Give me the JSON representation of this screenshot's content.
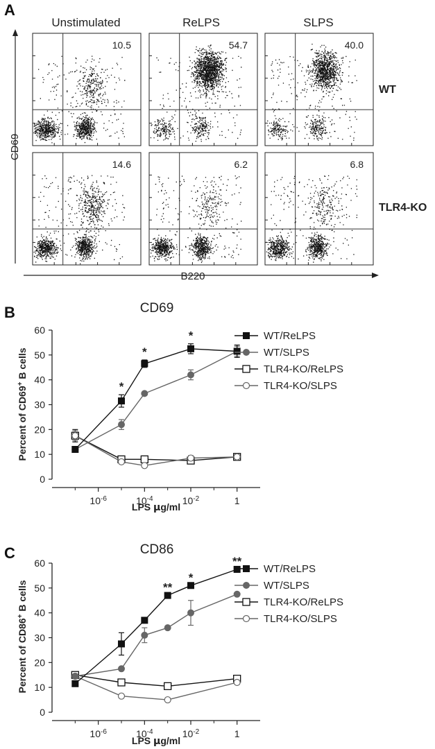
{
  "chart_data": [
    {
      "panel": "A",
      "type": "scatter",
      "columns": [
        "Unstimulated",
        "ReLPS",
        "SLPS"
      ],
      "rows": [
        "WT",
        "TLR4-KO"
      ],
      "percentages": [
        [
          "10.5",
          "54.7",
          "40.0"
        ],
        [
          "14.6",
          "6.2",
          "6.8"
        ]
      ],
      "xlabel": "B220",
      "ylabel": "CD69"
    },
    {
      "panel": "B",
      "type": "line",
      "title": "CD69",
      "xlabel": "LPS μg/ml",
      "ylabel": "Percent of CD69⁺ B cells",
      "xscale": "log",
      "xlim": [
        1e-08,
        10
      ],
      "ylim": [
        0,
        60
      ],
      "yticks": [
        0,
        10,
        20,
        30,
        40,
        50,
        60
      ],
      "xticks": [
        "10⁻⁶",
        "10⁻⁴",
        "10⁻²",
        "1"
      ],
      "x": [
        1e-07,
        1e-05,
        0.0001,
        0.01,
        1
      ],
      "series": [
        {
          "name": "WT/ReLPS",
          "values": [
            12,
            31.5,
            46.5,
            52.5,
            51.5
          ],
          "errors": [
            0,
            2.5,
            1.5,
            2,
            2.5
          ],
          "marker": "filled-square",
          "color": "#111111"
        },
        {
          "name": "WT/SLPS",
          "values": [
            12,
            22,
            34.5,
            42,
            51.5
          ],
          "errors": [
            0,
            2,
            0,
            2,
            2
          ],
          "marker": "filled-circle",
          "color": "#666666"
        },
        {
          "name": "TLR4-KO/ReLPS",
          "values": [
            17.5,
            8,
            8,
            7.5,
            9
          ],
          "errors": [
            2.5,
            0.5,
            1,
            0.5,
            0.5
          ],
          "marker": "open-square",
          "color": "#111111"
        },
        {
          "name": "TLR4-KO/SLPS",
          "values": [
            17.5,
            7,
            5.5,
            8.5,
            9
          ],
          "errors": [
            2,
            0,
            0,
            1,
            0.5
          ],
          "marker": "open-circle",
          "color": "#666666"
        }
      ],
      "significance": [
        {
          "x": 1e-05,
          "label": "*"
        },
        {
          "x": 0.0001,
          "label": "*"
        },
        {
          "x": 0.01,
          "label": "*"
        }
      ],
      "legend_position": "right"
    },
    {
      "panel": "C",
      "type": "line",
      "title": "CD86",
      "xlabel": "LPS μg/ml",
      "ylabel": "Percent of CD86⁺ B cells",
      "xscale": "log",
      "xlim": [
        1e-08,
        10
      ],
      "ylim": [
        0,
        60
      ],
      "yticks": [
        0,
        10,
        20,
        30,
        40,
        50,
        60
      ],
      "xticks": [
        "10⁻⁶",
        "10⁻⁴",
        "10⁻²",
        "1"
      ],
      "x": [
        1e-07,
        1e-05,
        0.0001,
        0.001,
        0.01,
        1
      ],
      "series": [
        {
          "name": "WT/ReLPS",
          "values": [
            11.5,
            27.5,
            37,
            47,
            51,
            57.5
          ],
          "errors": [
            0,
            4.5,
            0,
            0,
            0,
            0
          ],
          "marker": "filled-square",
          "color": "#111111"
        },
        {
          "name": "WT/SLPS",
          "values": [
            14.5,
            17.5,
            31,
            34,
            40,
            47.5
          ],
          "errors": [
            0,
            0,
            3,
            0,
            5,
            0
          ],
          "marker": "filled-circle",
          "color": "#666666"
        },
        {
          "name": "TLR4-KO/ReLPS",
          "values": [
            15,
            12,
            null,
            10.5,
            null,
            13.5
          ],
          "errors": [
            1,
            0,
            0,
            0,
            0,
            0
          ],
          "marker": "open-square",
          "color": "#111111"
        },
        {
          "name": "TLR4-KO/SLPS",
          "values": [
            14.5,
            6.5,
            null,
            5,
            null,
            12
          ],
          "errors": [
            0,
            0,
            0,
            0,
            0,
            0
          ],
          "marker": "open-circle",
          "color": "#666666"
        }
      ],
      "significance": [
        {
          "x": 0.001,
          "label": "**"
        },
        {
          "x": 0.01,
          "label": "*"
        },
        {
          "x": 1,
          "label": "**"
        }
      ],
      "legend_position": "right"
    }
  ]
}
